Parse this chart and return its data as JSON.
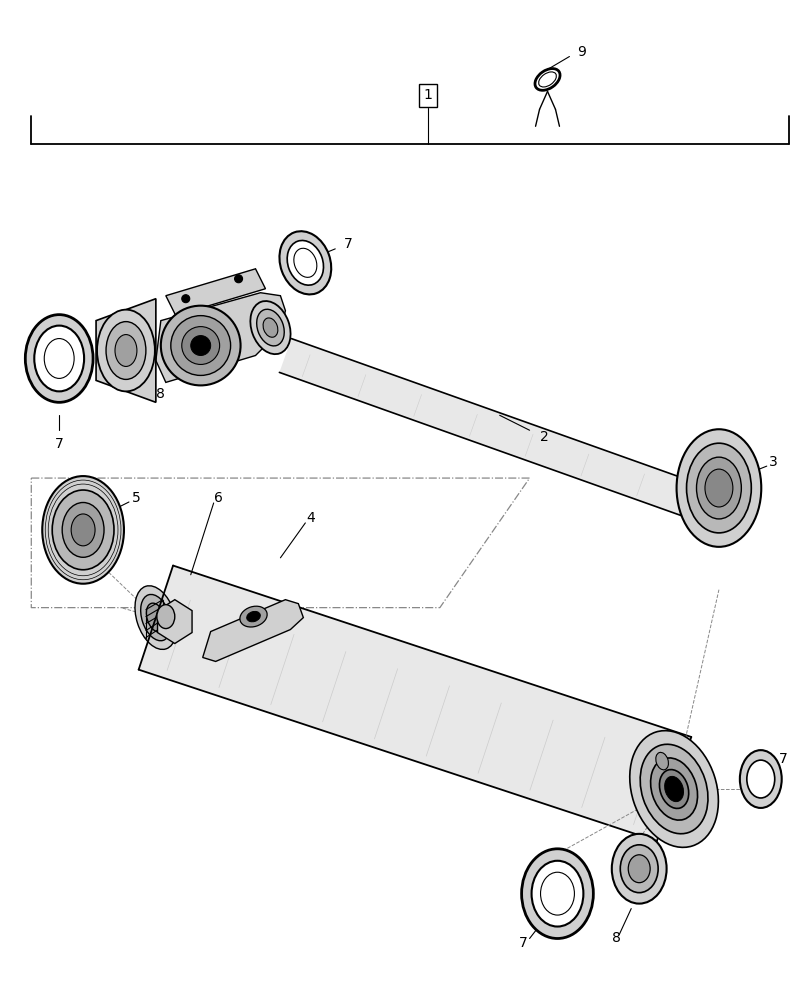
{
  "bg_color": "#ffffff",
  "lc": "#000000",
  "gray1": "#e8e8e8",
  "gray2": "#d0d0d0",
  "gray3": "#b8b8b8",
  "gray4": "#a0a0a0",
  "gray5": "#888888",
  "dash_color": "#888888"
}
